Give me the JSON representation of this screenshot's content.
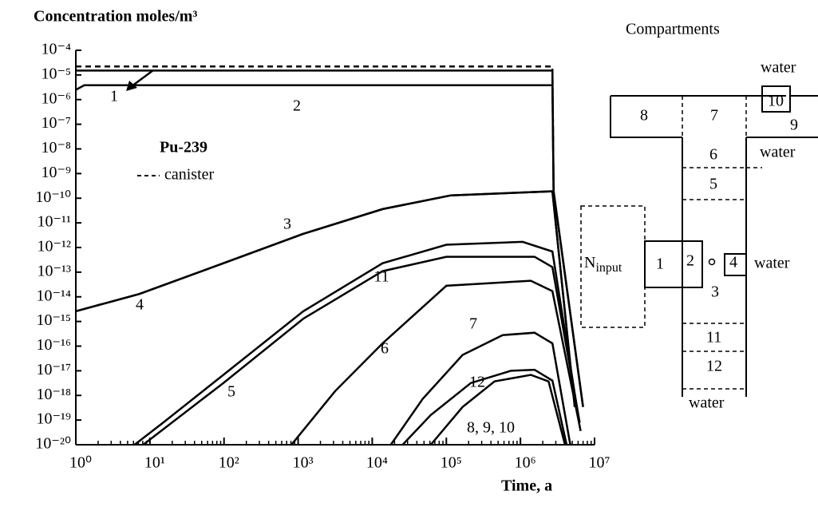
{
  "chart_data": {
    "type": "line",
    "title": "Concentration  moles/m³",
    "xlabel": "Time, a",
    "annotations": [
      "Pu-239"
    ],
    "xlog": true,
    "ylog": true,
    "xlim": [
      1,
      10000000
    ],
    "ylim": [
      1e-20,
      0.0001
    ],
    "xticks": [
      {
        "value": 1,
        "label": "10⁰"
      },
      {
        "value": 10,
        "label": "10¹"
      },
      {
        "value": 100,
        "label": "10²"
      },
      {
        "value": 1000,
        "label": "10³"
      },
      {
        "value": 10000,
        "label": "10⁴"
      },
      {
        "value": 100000,
        "label": "10⁵"
      },
      {
        "value": 1000000,
        "label": "10⁶"
      },
      {
        "value": 10000000,
        "label": "10⁷"
      }
    ],
    "yticks": [
      {
        "value": 0.0001,
        "label": "10⁻⁴"
      },
      {
        "value": 1e-05,
        "label": "10⁻⁵"
      },
      {
        "value": 1e-06,
        "label": "10⁻⁶"
      },
      {
        "value": 1e-07,
        "label": "10⁻⁷"
      },
      {
        "value": 1e-08,
        "label": "10⁻⁸"
      },
      {
        "value": 1e-09,
        "label": "10⁻⁹"
      },
      {
        "value": 1e-10,
        "label": "10⁻¹⁰"
      },
      {
        "value": 1e-11,
        "label": "10⁻¹¹"
      },
      {
        "value": 1e-12,
        "label": "10⁻¹²"
      },
      {
        "value": 1e-13,
        "label": "10⁻¹³"
      },
      {
        "value": 1e-14,
        "label": "10⁻¹⁴"
      },
      {
        "value": 1e-15,
        "label": "10⁻¹⁵"
      },
      {
        "value": 1e-16,
        "label": "10⁻¹⁶"
      },
      {
        "value": 1e-17,
        "label": "10⁻¹⁷"
      },
      {
        "value": 1e-18,
        "label": "10⁻¹⁸"
      },
      {
        "value": 1e-19,
        "label": "10⁻¹⁹"
      },
      {
        "value": 1e-20,
        "label": "10⁻²⁰"
      }
    ],
    "series": [
      {
        "name": "canister",
        "color": "#000000",
        "line_style": "dashed",
        "x": [
          1,
          2700000,
          2800000
        ],
        "values": [
          2.2e-05,
          2.2e-05,
          1.9e-10
        ]
      },
      {
        "name": "1",
        "color": "#000000",
        "x": [
          1,
          2700000,
          2800000,
          7000000
        ],
        "values": [
          1.5e-05,
          1.5e-05,
          1.9e-10,
          3.4e-19
        ]
      },
      {
        "name": "2",
        "color": "#000000",
        "x": [
          1,
          1.3,
          2700000,
          2800000,
          7000000
        ],
        "values": [
          2.5e-06,
          3.8e-06,
          3.8e-06,
          1.9e-10,
          3.4e-19
        ]
      },
      {
        "name": "3",
        "color": "#000000",
        "x": [
          1,
          7.2,
          98,
          1175,
          13800,
          115000,
          2700000,
          5400000
        ],
        "values": [
          2.6e-15,
          1.3e-14,
          2.3e-13,
          3.6e-12,
          3.6e-11,
          1.3e-10,
          1.9e-10,
          3.4e-19
        ]
      },
      {
        "name": "4",
        "color": "#000000",
        "x": [
          1,
          7.2,
          98,
          1175,
          13800,
          115000,
          2700000,
          5400000
        ],
        "values": [
          2.6e-15,
          1.3e-14,
          2.3e-13,
          3.6e-12,
          3.6e-11,
          1.3e-10,
          1.9e-10,
          3.4e-19
        ]
      },
      {
        "name": "11",
        "color": "#000000",
        "x": [
          6.2,
          15,
          98,
          1175,
          13800,
          100000,
          1070000,
          2700000,
          6000000
        ],
        "values": [
          1e-20,
          7.8e-20,
          6.8e-18,
          2.6e-15,
          2.3e-13,
          1.3e-12,
          1.7e-12,
          6.9e-13,
          1.6e-19
        ]
      },
      {
        "name": "5",
        "color": "#000000",
        "x": [
          8.1,
          98,
          1175,
          13800,
          100000,
          1550000,
          2700000,
          6300000
        ],
        "values": [
          1e-20,
          3.2e-18,
          1.3e-15,
          1.1e-13,
          4.2e-13,
          4.2e-13,
          1.6e-13,
          7.9e-20
        ]
      },
      {
        "name": "6",
        "color": "#000000",
        "x": [
          813,
          3160,
          13800,
          100000,
          1380000,
          2700000,
          6500000
        ],
        "values": [
          1e-20,
          1.5e-18,
          1.3e-16,
          2.8e-14,
          4.5e-14,
          1.7e-14,
          3.6e-20
        ]
      },
      {
        "name": "7",
        "color": "#000000",
        "x": [
          17800,
          47900,
          166000,
          575000,
          1550000,
          2700000,
          4700000
        ],
        "values": [
          1e-20,
          7.2e-19,
          4.4e-17,
          2.8e-16,
          3.5e-16,
          1.3e-16,
          1e-20
        ]
      },
      {
        "name": "12",
        "color": "#000000",
        "x": [
          25700,
          61700,
          214000,
          741000,
          1550000,
          2700000,
          4200000
        ],
        "values": [
          1e-20,
          1.6e-19,
          3.2e-18,
          1e-17,
          1.1e-17,
          4e-18,
          1e-20
        ]
      },
      {
        "name": "8, 9, 10",
        "color": "#000000",
        "x": [
          61700,
          166000,
          447000,
          1380000,
          2400000,
          4000000
        ],
        "values": [
          1e-20,
          3.4e-19,
          3.7e-18,
          6.8e-18,
          3.7e-18,
          1e-20
        ]
      }
    ]
  },
  "diagram": {
    "title": "Compartments",
    "input": {
      "base": "N",
      "subscript": "input"
    },
    "labels": [
      "1",
      "2",
      "3",
      "4",
      "5",
      "6",
      "7",
      "8",
      "9",
      "10",
      "11",
      "12"
    ],
    "water": [
      "water",
      "water",
      "water",
      "water",
      "water"
    ]
  }
}
